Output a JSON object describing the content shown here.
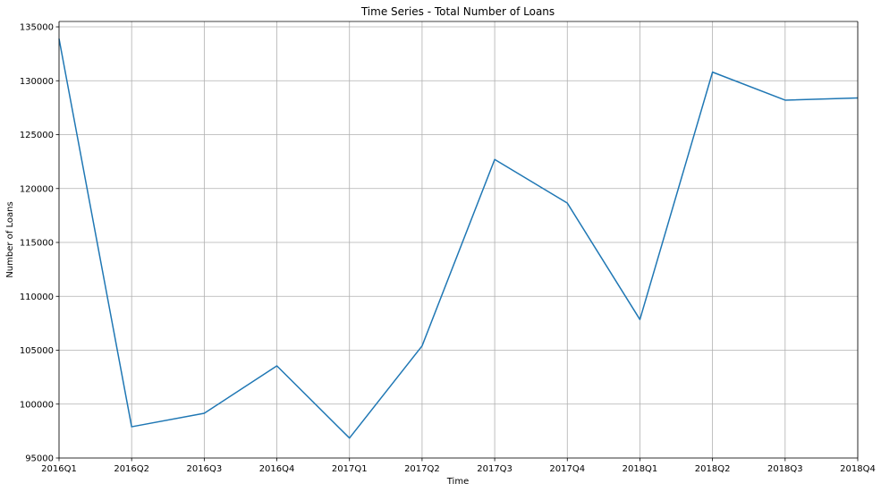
{
  "chart_data": {
    "type": "line",
    "title": "Time Series - Total Number of Loans",
    "xlabel": "Time",
    "ylabel": "Number of Loans",
    "x": [
      "2016Q1",
      "2016Q2",
      "2016Q3",
      "2016Q4",
      "2017Q1",
      "2017Q2",
      "2017Q3",
      "2017Q4",
      "2018Q1",
      "2018Q2",
      "2018Q3",
      "2018Q4"
    ],
    "series": [
      {
        "values": [
          133900,
          97900,
          99150,
          103550,
          96850,
          105400,
          122700,
          118650,
          107850,
          130800,
          128200,
          128400
        ],
        "color": "#1f77b4"
      }
    ],
    "ylim": [
      95000,
      135500
    ],
    "yticks": [
      "95000",
      "100000",
      "105000",
      "110000",
      "115000",
      "120000",
      "125000",
      "130000",
      "135000"
    ],
    "grid": true,
    "legend": "none"
  }
}
